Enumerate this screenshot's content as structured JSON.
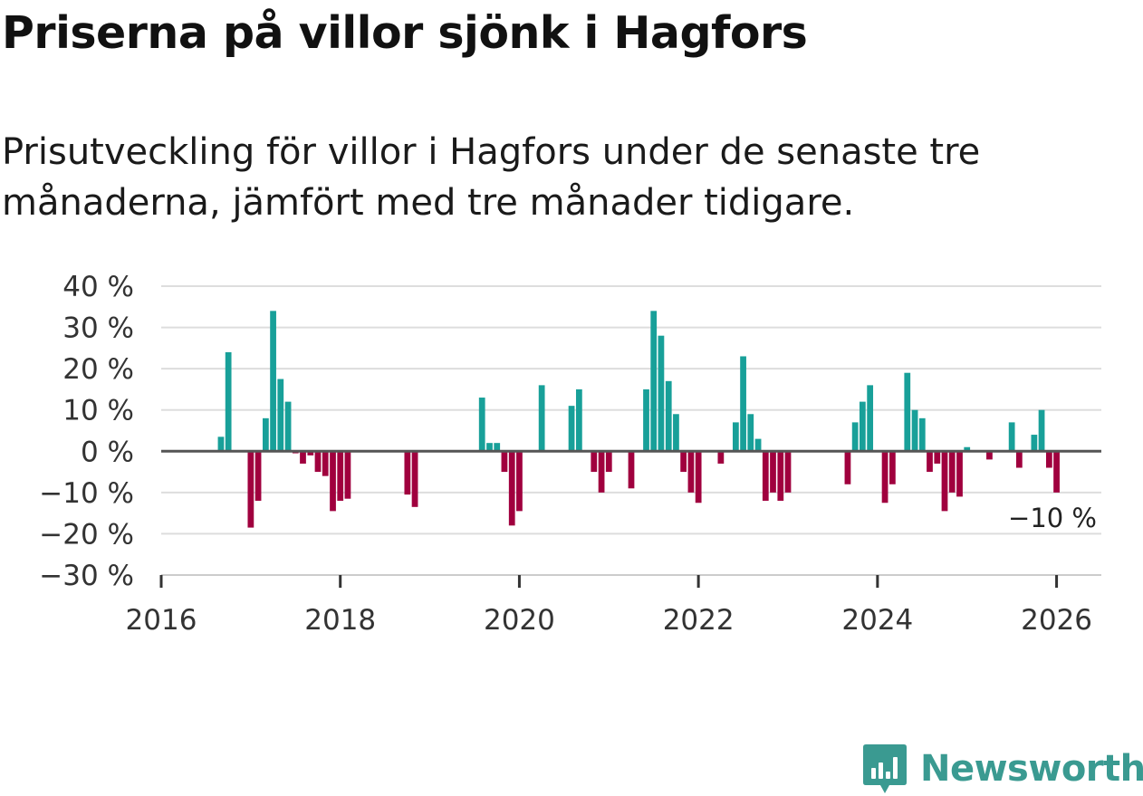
{
  "title": "Priserna på villor sjönk i Hagfors",
  "subtitle": "Prisutveckling för villor i Hagfors under de senaste tre månaderna, jämfört med tre månader tidigare.",
  "brand": "Newsworthy",
  "colors": {
    "positive": "#18a099",
    "negative": "#a0003e",
    "zero_line": "#555555",
    "grid": "#dddddd",
    "brand": "#3a9a91"
  },
  "chart_data": {
    "type": "bar",
    "title": "Priserna på villor sjönk i Hagfors",
    "xlabel": "",
    "ylabel": "",
    "ylim": [
      -30,
      40
    ],
    "xlim": [
      2016.0,
      2026.5
    ],
    "y_ticks": [
      40,
      30,
      20,
      10,
      0,
      -10,
      -20,
      -30
    ],
    "y_tick_labels": [
      "40 %",
      "30 %",
      "20 %",
      "10 %",
      "0 %",
      "−10 %",
      "−20 %",
      "−30 %"
    ],
    "x_ticks": [
      2016,
      2018,
      2020,
      2022,
      2024,
      2026
    ],
    "x_tick_labels": [
      "2016",
      "2018",
      "2020",
      "2022",
      "2024",
      "2026"
    ],
    "grid": true,
    "last_value_label": "−10 %",
    "x": [
      2016.667,
      2016.75,
      2017.0,
      2017.083,
      2017.167,
      2017.25,
      2017.333,
      2017.417,
      2017.5,
      2017.583,
      2017.667,
      2017.75,
      2017.833,
      2017.917,
      2018.0,
      2018.083,
      2018.75,
      2018.833,
      2019.583,
      2019.667,
      2019.75,
      2019.833,
      2019.917,
      2020.0,
      2020.25,
      2020.583,
      2020.667,
      2020.833,
      2020.917,
      2021.0,
      2021.25,
      2021.417,
      2021.5,
      2021.583,
      2021.667,
      2021.75,
      2021.833,
      2021.917,
      2022.0,
      2022.25,
      2022.417,
      2022.5,
      2022.583,
      2022.667,
      2022.75,
      2022.833,
      2022.917,
      2023.0,
      2023.667,
      2023.75,
      2023.833,
      2023.917,
      2024.083,
      2024.167,
      2024.333,
      2024.417,
      2024.5,
      2024.583,
      2024.667,
      2024.75,
      2024.833,
      2024.917,
      2025.0,
      2025.25,
      2025.5,
      2025.583,
      2025.75,
      2025.833,
      2025.917,
      2026.0
    ],
    "values": [
      3.5,
      24,
      -18.5,
      -12,
      8,
      34,
      17.5,
      12,
      -0.5,
      -3,
      -1,
      -5,
      -6,
      -14.5,
      -12,
      -11.5,
      -10.5,
      -13.5,
      13,
      2,
      2,
      -5,
      -18,
      -14.5,
      16,
      11,
      15,
      -5,
      -10,
      -5,
      -9,
      15,
      34,
      28,
      17,
      9,
      -5,
      -10,
      -12.5,
      -3,
      7,
      23,
      9,
      3,
      -12,
      -10,
      -12,
      -10,
      -8,
      7,
      12,
      16,
      -12.5,
      -8,
      19,
      10,
      8,
      -5,
      -3,
      -14.5,
      -10,
      -11,
      1,
      -2,
      7,
      -4,
      4,
      10,
      -4,
      -10
    ]
  }
}
